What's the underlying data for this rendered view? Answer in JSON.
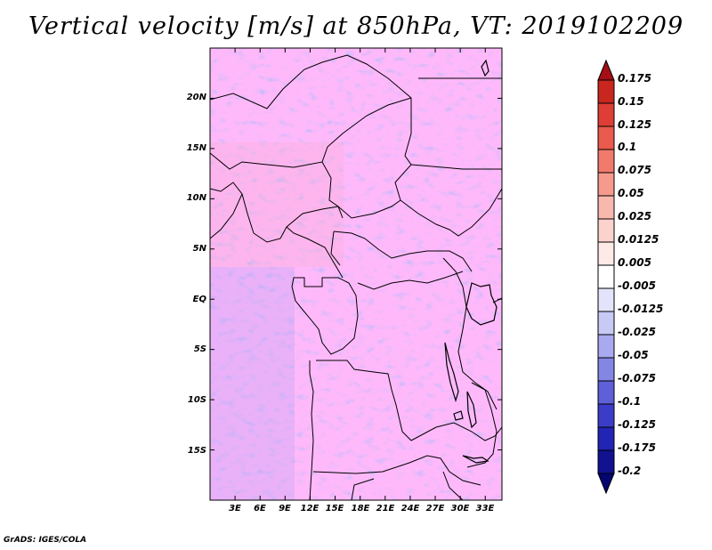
{
  "title": "Vertical velocity [m/s] at 850hPa, VT: 2019102209",
  "credit": "GrADS: IGES/COLA",
  "map": {
    "lat_labels": [
      "20N",
      "15N",
      "10N",
      "5N",
      "EQ",
      "5S",
      "10S",
      "15S"
    ],
    "lat_values": [
      20,
      15,
      10,
      5,
      0,
      -5,
      -10,
      -15
    ],
    "lon_labels": [
      "3E",
      "6E",
      "9E",
      "12E",
      "15E",
      "18E",
      "21E",
      "24E",
      "27E",
      "30E",
      "33E"
    ],
    "lon_values": [
      3,
      6,
      9,
      12,
      15,
      18,
      21,
      24,
      27,
      30,
      33
    ],
    "lon_range": [
      0,
      35
    ],
    "lat_range": [
      -20,
      25
    ]
  },
  "colorbar": {
    "labels": [
      "0.175",
      "0.15",
      "0.125",
      "0.1",
      "0.075",
      "0.05",
      "0.025",
      "0.0125",
      "0.005",
      "-0.005",
      "-0.0125",
      "-0.025",
      "-0.05",
      "-0.075",
      "-0.1",
      "-0.125",
      "-0.175",
      "-0.2"
    ],
    "colors": [
      "#a50f15",
      "#c8261f",
      "#de3e35",
      "#ea5a4d",
      "#f07a6c",
      "#f59a8d",
      "#f9b8ae",
      "#fcd3cc",
      "#fdeae6",
      "#ffffff",
      "#e3e4fb",
      "#c8c9f5",
      "#a8a9ee",
      "#8486e4",
      "#5e60d8",
      "#3b3dc9",
      "#2224b3",
      "#10128f",
      "#050572"
    ]
  }
}
